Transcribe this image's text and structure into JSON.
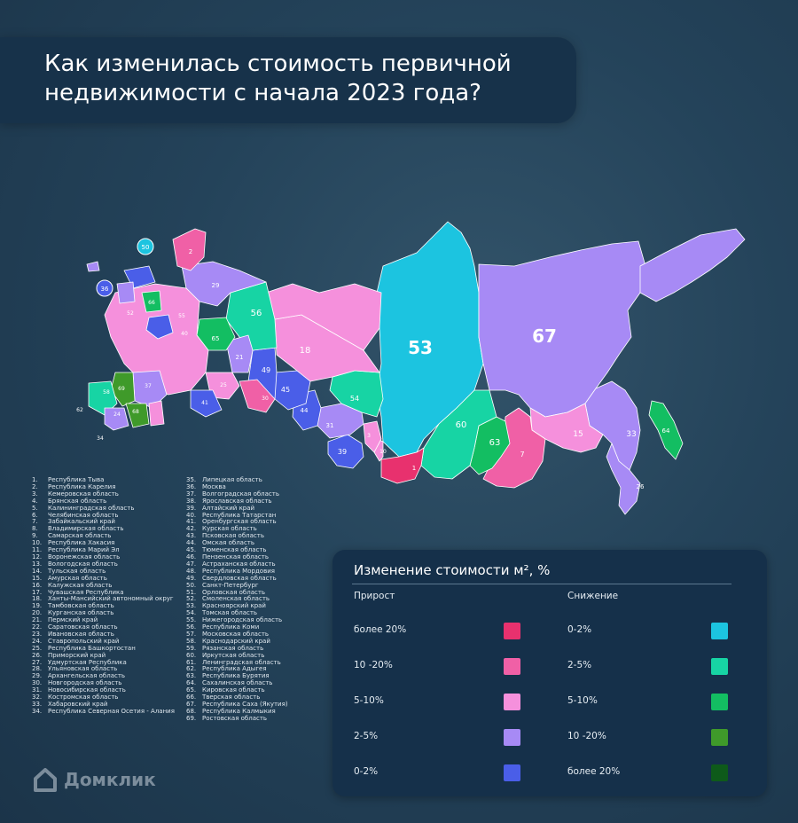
{
  "title": "Как изменилась стоимость первичной недвижимости с начала 2023 года?",
  "map_labels": [
    "53",
    "67",
    "50",
    "36",
    "2",
    "29",
    "56",
    "18",
    "54",
    "60",
    "63",
    "7",
    "15",
    "33",
    "64",
    "26",
    "1",
    "3",
    "10",
    "39",
    "31",
    "44",
    "45",
    "49",
    "21",
    "65",
    "30",
    "66",
    "52",
    "58",
    "62",
    "24",
    "68",
    "69",
    "34",
    "37",
    "40",
    "25",
    "41",
    "55"
  ],
  "regions": [
    {
      "n": "1.",
      "name": "Республика Тыва"
    },
    {
      "n": "2.",
      "name": "Республика Карелия"
    },
    {
      "n": "3.",
      "name": "Кемеровская область"
    },
    {
      "n": "4.",
      "name": "Брянская область"
    },
    {
      "n": "5.",
      "name": "Калининградская область"
    },
    {
      "n": "6.",
      "name": "Челябинская область"
    },
    {
      "n": "7.",
      "name": "Забайкальский край"
    },
    {
      "n": "8.",
      "name": "Владимирская область"
    },
    {
      "n": "9.",
      "name": "Самарская область"
    },
    {
      "n": "10.",
      "name": "Республика Хакасия"
    },
    {
      "n": "11.",
      "name": "Республика Марий Эл"
    },
    {
      "n": "12.",
      "name": "Воронежская область"
    },
    {
      "n": "13.",
      "name": "Вологодская область"
    },
    {
      "n": "14.",
      "name": "Тульская область"
    },
    {
      "n": "15.",
      "name": "Амурская область"
    },
    {
      "n": "16.",
      "name": "Калужская область"
    },
    {
      "n": "17.",
      "name": "Чувашская Республика"
    },
    {
      "n": "18.",
      "name": "Ханты-Мансийский автономный округ"
    },
    {
      "n": "19.",
      "name": "Тамбовская область"
    },
    {
      "n": "20.",
      "name": "Курганская область"
    },
    {
      "n": "21.",
      "name": "Пермский край"
    },
    {
      "n": "22.",
      "name": "Саратовская область"
    },
    {
      "n": "23.",
      "name": "Ивановская область"
    },
    {
      "n": "24.",
      "name": "Ставропольский край"
    },
    {
      "n": "25.",
      "name": "Республика Башкортостан"
    },
    {
      "n": "26.",
      "name": "Приморский край"
    },
    {
      "n": "27.",
      "name": "Удмуртская Республика"
    },
    {
      "n": "28.",
      "name": "Ульяновская область"
    },
    {
      "n": "29.",
      "name": "Архангельская область"
    },
    {
      "n": "30.",
      "name": "Новгородская область"
    },
    {
      "n": "31.",
      "name": "Новосибирская область"
    },
    {
      "n": "32.",
      "name": "Костромская область"
    },
    {
      "n": "33.",
      "name": "Хабаровский край"
    },
    {
      "n": "34.",
      "name": "Республика Северная Осетия - Алания"
    },
    {
      "n": "35.",
      "name": "Липецкая область"
    },
    {
      "n": "36.",
      "name": "Москва"
    },
    {
      "n": "37.",
      "name": "Волгоградская область"
    },
    {
      "n": "38.",
      "name": "Ярославская область"
    },
    {
      "n": "39.",
      "name": "Алтайский край"
    },
    {
      "n": "40.",
      "name": "Республика Татарстан"
    },
    {
      "n": "41.",
      "name": "Оренбургская область"
    },
    {
      "n": "42.",
      "name": "Курская область"
    },
    {
      "n": "43.",
      "name": "Псковская область"
    },
    {
      "n": "44.",
      "name": "Омская область"
    },
    {
      "n": "45.",
      "name": "Тюменская область"
    },
    {
      "n": "46.",
      "name": "Пензенская область"
    },
    {
      "n": "47.",
      "name": "Астраханская область"
    },
    {
      "n": "48.",
      "name": "Республика Мордовия"
    },
    {
      "n": "49.",
      "name": "Свердловская область"
    },
    {
      "n": "50.",
      "name": "Санкт-Петербург"
    },
    {
      "n": "51.",
      "name": "Орловская область"
    },
    {
      "n": "52.",
      "name": "Смоленская область"
    },
    {
      "n": "53.",
      "name": "Красноярский край"
    },
    {
      "n": "54.",
      "name": "Томская область"
    },
    {
      "n": "55.",
      "name": "Нижегородская область"
    },
    {
      "n": "56.",
      "name": "Республика Коми"
    },
    {
      "n": "57.",
      "name": "Московская область"
    },
    {
      "n": "58.",
      "name": "Краснодарский край"
    },
    {
      "n": "59.",
      "name": "Рязанская область"
    },
    {
      "n": "60.",
      "name": "Иркутская область"
    },
    {
      "n": "61.",
      "name": "Ленинградская область"
    },
    {
      "n": "62.",
      "name": "Республика Адыгея"
    },
    {
      "n": "63.",
      "name": "Республика Бурятия"
    },
    {
      "n": "64.",
      "name": "Сахалинская область"
    },
    {
      "n": "65.",
      "name": "Кировская область"
    },
    {
      "n": "66.",
      "name": "Тверская область"
    },
    {
      "n": "67.",
      "name": "Республика Саха (Якутия)"
    },
    {
      "n": "68.",
      "name": "Республика Калмыкия"
    },
    {
      "n": "69.",
      "name": "Ростовская область"
    }
  ],
  "legend": {
    "title": "Изменение стоимости м², %",
    "growth_label": "Прирост",
    "decline_label": "Снижение",
    "growth": [
      {
        "label": "более 20%",
        "color": "#e8316e"
      },
      {
        "label": "10 -20%",
        "color": "#f060a6"
      },
      {
        "label": "5-10%",
        "color": "#f590dc"
      },
      {
        "label": "2-5%",
        "color": "#a78af5"
      },
      {
        "label": "0-2%",
        "color": "#4a5ee8"
      }
    ],
    "decline": [
      {
        "label": "0-2%",
        "color": "#1cc4e0"
      },
      {
        "label": "2-5%",
        "color": "#17d4a4"
      },
      {
        "label": "5-10%",
        "color": "#13be62"
      },
      {
        "label": "10 -20%",
        "color": "#3f9a2a"
      },
      {
        "label": "более 20%",
        "color": "#0e5a1a"
      }
    ]
  },
  "brand": {
    "name": "Домклик",
    "icon": "house-logo-icon"
  }
}
